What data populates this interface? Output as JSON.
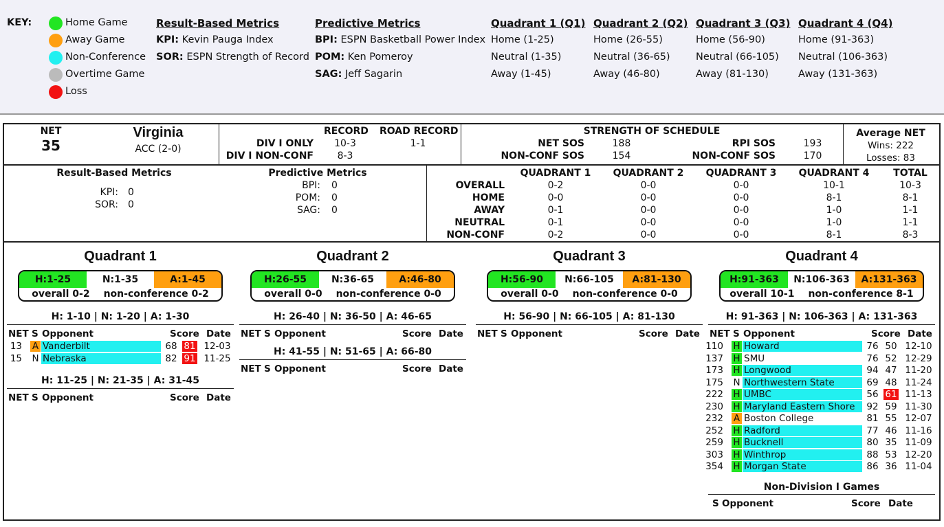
{
  "key": {
    "label": "KEY:",
    "legend": [
      {
        "label": "Home Game",
        "color": "#22e522"
      },
      {
        "label": "Away Game",
        "color": "#ff9f10"
      },
      {
        "label": "Non-Conference",
        "color": "#22f0f0"
      },
      {
        "label": "Overtime Game",
        "color": "#bbbbbb"
      },
      {
        "label": "Loss",
        "color": "#f21212"
      }
    ],
    "result_metrics": {
      "heading": "Result-Based Metrics",
      "items": [
        {
          "abbr": "KPI:",
          "name": "Kevin Pauga Index"
        },
        {
          "abbr": "SOR:",
          "name": "ESPN Strength of Record"
        }
      ]
    },
    "predictive_metrics": {
      "heading": "Predictive Metrics",
      "items": [
        {
          "abbr": "BPI:",
          "name": "ESPN Basketball Power Index"
        },
        {
          "abbr": "POM:",
          "name": "Ken Pomeroy"
        },
        {
          "abbr": "SAG:",
          "name": "Jeff Sagarin"
        }
      ]
    },
    "quadrants": [
      {
        "heading": "Quadrant 1 (Q1)",
        "lines": [
          "Home (1-25)",
          "Neutral (1-35)",
          "Away (1-45)"
        ]
      },
      {
        "heading": "Quadrant 2 (Q2)",
        "lines": [
          "Home (26-55)",
          "Neutral (36-65)",
          "Away (46-80)"
        ]
      },
      {
        "heading": "Quadrant 3 (Q3)",
        "lines": [
          "Home (56-90)",
          "Neutral (66-105)",
          "Away (81-130)"
        ]
      },
      {
        "heading": "Quadrant 4 (Q4)",
        "lines": [
          "Home (91-363)",
          "Neutral (106-363)",
          "Away (131-363)"
        ]
      }
    ]
  },
  "team": {
    "net_label": "NET",
    "net": "35",
    "name": "Virginia",
    "conf": "ACC (2-0)"
  },
  "record": {
    "record_hdr": "RECORD",
    "road_hdr": "ROAD RECORD",
    "div1_label": "DIV I ONLY",
    "div1_record": "10-3",
    "road_record": "1-1",
    "nonconf_label": "DIV I NON-CONF",
    "nonconf_record": "8-3"
  },
  "sos": {
    "title": "STRENGTH OF SCHEDULE",
    "net_sos_label": "NET SOS",
    "net_sos": "188",
    "net_nc_label": "NON-CONF SOS",
    "net_nc": "154",
    "rpi_sos_label": "RPI SOS",
    "rpi_sos": "193",
    "rpi_nc_label": "NON-CONF SOS",
    "rpi_nc": "170"
  },
  "avg_net": {
    "title": "Average NET",
    "wins": "Wins: 222",
    "losses": "Losses: 83"
  },
  "metrics": {
    "result_title": "Result-Based Metrics",
    "kpi_label": "KPI:",
    "kpi": "0",
    "sor_label": "SOR:",
    "sor": "0",
    "pred_title": "Predictive Metrics",
    "bpi_label": "BPI:",
    "bpi": "0",
    "pom_label": "POM:",
    "pom": "0",
    "sag_label": "SAG:",
    "sag": "0"
  },
  "quad_table": {
    "headers": [
      "QUADRANT 1",
      "QUADRANT 2",
      "QUADRANT 3",
      "QUADRANT 4",
      "TOTAL"
    ],
    "rows": [
      {
        "label": "OVERALL",
        "values": [
          "0-2",
          "0-0",
          "0-0",
          "10-1",
          "10-3"
        ]
      },
      {
        "label": "HOME",
        "values": [
          "0-0",
          "0-0",
          "0-0",
          "8-1",
          "8-1"
        ]
      },
      {
        "label": "AWAY",
        "values": [
          "0-1",
          "0-0",
          "0-0",
          "1-0",
          "1-1"
        ]
      },
      {
        "label": "NEUTRAL",
        "values": [
          "0-1",
          "0-0",
          "0-0",
          "1-0",
          "1-1"
        ]
      },
      {
        "label": "NON-CONF",
        "values": [
          "0-2",
          "0-0",
          "0-0",
          "8-1",
          "8-3"
        ]
      }
    ]
  },
  "col_headers": {
    "net": "NET",
    "s": "S",
    "opp": "Opponent",
    "score": "Score",
    "date": "Date"
  },
  "quadrants": [
    {
      "title": "Quadrant 1",
      "h": "H:1-25",
      "n": "N:1-35",
      "a": "A:1-45",
      "overall": "overall 0-2",
      "nonconf": "non-conference 0-2",
      "groups": [
        {
          "range": "H: 1-10 | N: 1-20 | A: 1-30",
          "games": [
            {
              "net": "13",
              "loc": "A",
              "opp": "Vanderbilt",
              "nc": true,
              "s1": "68",
              "s2": "81",
              "loss": true,
              "date": "12-03"
            },
            {
              "net": "15",
              "loc": "N",
              "opp": "Nebraska",
              "nc": true,
              "s1": "82",
              "s2": "91",
              "loss": true,
              "date": "11-25"
            }
          ]
        },
        {
          "range": "H: 11-25 | N: 21-35 | A: 31-45",
          "games": []
        }
      ]
    },
    {
      "title": "Quadrant 2",
      "h": "H:26-55",
      "n": "N:36-65",
      "a": "A:46-80",
      "overall": "overall 0-0",
      "nonconf": "non-conference 0-0",
      "groups": [
        {
          "range": "H: 26-40 | N: 36-50 | A: 46-65",
          "games": []
        },
        {
          "range": "H: 41-55 | N: 51-65 | A: 66-80",
          "games": []
        }
      ]
    },
    {
      "title": "Quadrant 3",
      "h": "H:56-90",
      "n": "N:66-105",
      "a": "A:81-130",
      "overall": "overall 0-0",
      "nonconf": "non-conference 0-0",
      "groups": [
        {
          "range": "H: 56-90 | N: 66-105 | A: 81-130",
          "games": []
        }
      ]
    },
    {
      "title": "Quadrant 4",
      "h": "H:91-363",
      "n": "N:106-363",
      "a": "A:131-363",
      "overall": "overall 10-1",
      "nonconf": "non-conference 8-1",
      "groups": [
        {
          "range": "H: 91-363 | N: 106-363 | A: 131-363",
          "games": [
            {
              "net": "110",
              "loc": "H",
              "opp": "Howard",
              "nc": true,
              "s1": "76",
              "s2": "50",
              "loss": false,
              "date": "12-10"
            },
            {
              "net": "137",
              "loc": "H",
              "opp": "SMU",
              "nc": false,
              "s1": "76",
              "s2": "52",
              "loss": false,
              "date": "12-29"
            },
            {
              "net": "173",
              "loc": "H",
              "opp": "Longwood",
              "nc": true,
              "s1": "94",
              "s2": "47",
              "loss": false,
              "date": "11-20"
            },
            {
              "net": "175",
              "loc": "N",
              "opp": "Northwestern State",
              "nc": true,
              "s1": "69",
              "s2": "48",
              "loss": false,
              "date": "11-24"
            },
            {
              "net": "222",
              "loc": "H",
              "opp": "UMBC",
              "nc": true,
              "s1": "56",
              "s2": "61",
              "loss": true,
              "date": "11-13"
            },
            {
              "net": "230",
              "loc": "H",
              "opp": "Maryland Eastern Shore",
              "nc": true,
              "s1": "92",
              "s2": "59",
              "loss": false,
              "date": "11-30"
            },
            {
              "net": "232",
              "loc": "A",
              "opp": "Boston College",
              "nc": false,
              "s1": "81",
              "s2": "55",
              "loss": false,
              "date": "12-07"
            },
            {
              "net": "252",
              "loc": "H",
              "opp": "Radford",
              "nc": true,
              "s1": "77",
              "s2": "46",
              "loss": false,
              "date": "11-16"
            },
            {
              "net": "259",
              "loc": "H",
              "opp": "Bucknell",
              "nc": true,
              "s1": "80",
              "s2": "35",
              "loss": false,
              "date": "11-09"
            },
            {
              "net": "303",
              "loc": "H",
              "opp": "Winthrop",
              "nc": true,
              "s1": "88",
              "s2": "53",
              "loss": false,
              "date": "12-20"
            },
            {
              "net": "354",
              "loc": "H",
              "opp": "Morgan State",
              "nc": true,
              "s1": "86",
              "s2": "36",
              "loss": false,
              "date": "11-04"
            }
          ]
        }
      ],
      "non_d1_title": "Non-Division I Games"
    }
  ]
}
